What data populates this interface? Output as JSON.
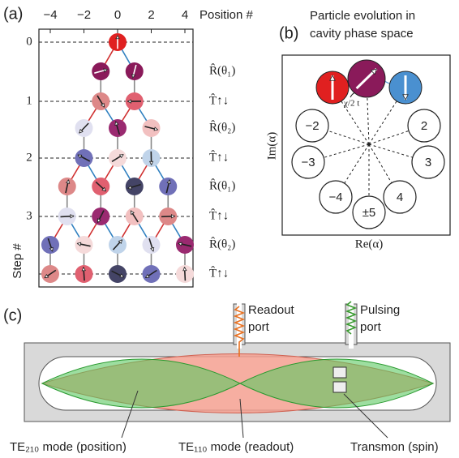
{
  "panels": {
    "a": {
      "label": "(a)",
      "x_axis_title": "Position #",
      "x_ticks": [
        "−4",
        "−2",
        "0",
        "2",
        "4"
      ],
      "y_axis_title": "Step #",
      "y_ticks": [
        "0",
        "1",
        "2",
        "3"
      ],
      "operators": [
        "R̂(θ₁)",
        "T̂↑↓",
        "R̂(θ₂)",
        "T̂↑↓",
        "R̂(θ₁)",
        "T̂↑↓",
        "R̂(θ₂)",
        "T̂↑↓"
      ]
    },
    "b": {
      "label": "(b)",
      "title_lines": [
        "Particle evolution in",
        "cavity phase space"
      ],
      "angle_label": "χ/2 t",
      "circle_labels": [
        "−2",
        "2",
        "−3",
        "3",
        "−4",
        "4",
        "±5"
      ],
      "x_axis_title": "Re(α)",
      "y_axis_title": "Im(α)"
    },
    "c": {
      "label": "(c)",
      "ports": [
        [
          "Readout",
          "port"
        ],
        [
          "Pulsing",
          "port"
        ]
      ],
      "mode_labels": [
        "TE₂₁₀ mode (position)",
        "TE₁₁₀ mode (readout)",
        "Transmon (spin)"
      ]
    }
  }
}
